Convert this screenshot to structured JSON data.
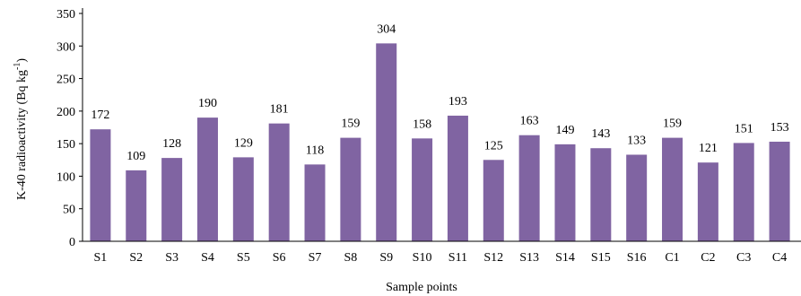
{
  "chart_data": {
    "type": "bar",
    "xlabel": "Sample points",
    "ylabel": "K-40 radioactivity (Bq kg",
    "ylabel_superscript": "-1",
    "ylabel_suffix": ")",
    "ylim": [
      0,
      350
    ],
    "yticks": [
      0,
      50,
      100,
      150,
      200,
      250,
      300,
      350
    ],
    "grid": false,
    "bar_color": "#8064a2",
    "categories": [
      "S1",
      "S2",
      "S3",
      "S4",
      "S5",
      "S6",
      "S7",
      "S8",
      "S9",
      "S10",
      "S11",
      "S12",
      "S13",
      "S14",
      "S15",
      "S16",
      "C1",
      "C2",
      "C3",
      "C4"
    ],
    "values": [
      172,
      109,
      128,
      190,
      129,
      181,
      118,
      159,
      304,
      158,
      193,
      125,
      163,
      149,
      143,
      133,
      159,
      121,
      151,
      153
    ],
    "data_labels": [
      "172",
      "109",
      "128",
      "190",
      "129",
      "181",
      "118",
      "159",
      "304",
      "158",
      "193",
      "125",
      "163",
      "149",
      "143",
      "133",
      "159",
      "121",
      "151",
      "153"
    ]
  }
}
